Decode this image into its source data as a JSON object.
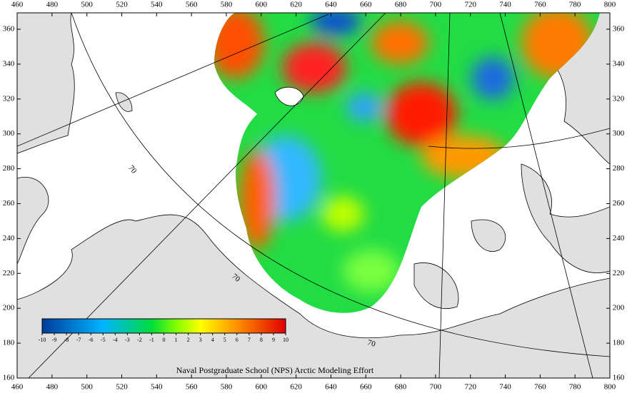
{
  "map": {
    "xticks": [
      460,
      480,
      500,
      520,
      540,
      560,
      580,
      600,
      620,
      640,
      660,
      680,
      700,
      720,
      740,
      760,
      780,
      800
    ],
    "yticks": [
      160,
      180,
      200,
      220,
      240,
      260,
      280,
      300,
      320,
      340,
      360
    ],
    "colorbar": {
      "ticks": [
        -10,
        -9,
        -8,
        -7,
        -6,
        -5,
        -4,
        -3,
        -2,
        -1,
        0,
        1,
        2,
        3,
        4,
        5,
        6,
        7,
        8,
        9,
        10
      ]
    },
    "contour_labels": [
      "70",
      "70",
      "70"
    ],
    "credit": "Naval Postgraduate School (NPS) Arctic Modeling Effort"
  }
}
